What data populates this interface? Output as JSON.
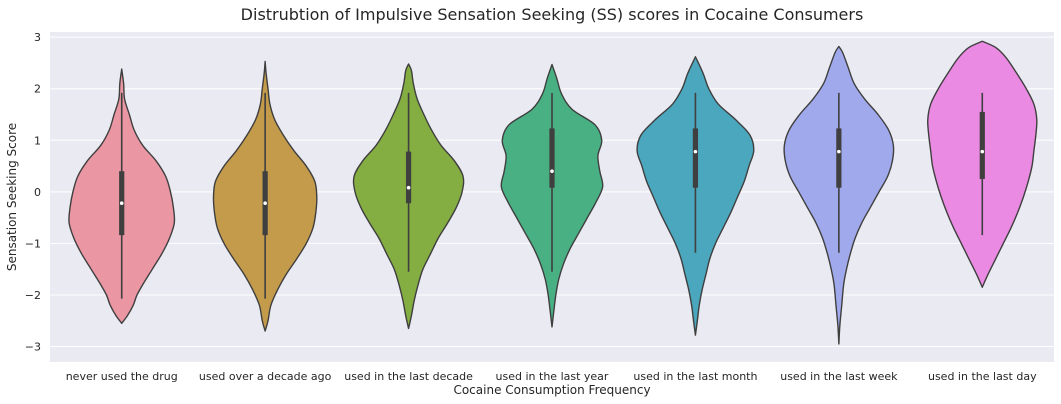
{
  "chart_data": {
    "type": "violin",
    "title": "Distrubtion of Impulsive Sensation Seeking (SS) scores in Cocaine Consumers",
    "xlabel": "Cocaine Consumption Frequency",
    "ylabel": "Sensation Seeking Score",
    "ylim": [
      -3.3,
      3.1
    ],
    "yticks": [
      -3,
      -2,
      -1,
      0,
      1,
      2,
      3
    ],
    "grid": true,
    "legend": "none",
    "categories": [
      "never used the drug",
      "used over a decade ago",
      "used in the last decade",
      "used in the last year",
      "used in the last month",
      "used in the last week",
      "used in the last day"
    ],
    "series": [
      {
        "color": "#ea96a3",
        "whisker": [
          -2.07,
          1.92
        ],
        "q1": -0.84,
        "median": -0.22,
        "q3": 0.4,
        "profile": [
          [
            -2.55,
            0
          ],
          [
            -2.4,
            0.06
          ],
          [
            -2.2,
            0.12
          ],
          [
            -2.0,
            0.16
          ],
          [
            -1.8,
            0.22
          ],
          [
            -1.5,
            0.32
          ],
          [
            -1.2,
            0.42
          ],
          [
            -0.9,
            0.5
          ],
          [
            -0.6,
            0.55
          ],
          [
            -0.3,
            0.54
          ],
          [
            0.0,
            0.51
          ],
          [
            0.3,
            0.46
          ],
          [
            0.6,
            0.36
          ],
          [
            0.9,
            0.22
          ],
          [
            1.2,
            0.13
          ],
          [
            1.5,
            0.08
          ],
          [
            1.8,
            0.03
          ],
          [
            2.1,
            0.02
          ],
          [
            2.38,
            0
          ]
        ]
      },
      {
        "color": "#c49b4b",
        "whisker": [
          -2.07,
          1.92
        ],
        "q1": -0.84,
        "median": -0.22,
        "q3": 0.4,
        "profile": [
          [
            -2.7,
            0
          ],
          [
            -2.5,
            0.03
          ],
          [
            -2.2,
            0.06
          ],
          [
            -1.9,
            0.13
          ],
          [
            -1.6,
            0.22
          ],
          [
            -1.3,
            0.33
          ],
          [
            -1.0,
            0.43
          ],
          [
            -0.7,
            0.5
          ],
          [
            -0.4,
            0.53
          ],
          [
            -0.1,
            0.54
          ],
          [
            0.2,
            0.52
          ],
          [
            0.5,
            0.43
          ],
          [
            0.8,
            0.3
          ],
          [
            1.1,
            0.19
          ],
          [
            1.4,
            0.1
          ],
          [
            1.7,
            0.05
          ],
          [
            2.0,
            0.03
          ],
          [
            2.3,
            0.01
          ],
          [
            2.53,
            0
          ]
        ]
      },
      {
        "color": "#84ad42",
        "whisker": [
          -1.55,
          1.92
        ],
        "q1": -0.22,
        "median": 0.08,
        "q3": 0.78,
        "profile": [
          [
            -2.65,
            0
          ],
          [
            -2.4,
            0.03
          ],
          [
            -2.1,
            0.06
          ],
          [
            -1.8,
            0.1
          ],
          [
            -1.5,
            0.15
          ],
          [
            -1.2,
            0.23
          ],
          [
            -0.9,
            0.31
          ],
          [
            -0.6,
            0.41
          ],
          [
            -0.3,
            0.5
          ],
          [
            0.0,
            0.56
          ],
          [
            0.3,
            0.57
          ],
          [
            0.6,
            0.48
          ],
          [
            0.9,
            0.34
          ],
          [
            1.2,
            0.24
          ],
          [
            1.5,
            0.16
          ],
          [
            1.8,
            0.09
          ],
          [
            2.1,
            0.05
          ],
          [
            2.35,
            0.03
          ],
          [
            2.48,
            0
          ]
        ]
      },
      {
        "color": "#48b083",
        "whisker": [
          -1.55,
          1.92
        ],
        "q1": 0.08,
        "median": 0.4,
        "q3": 1.23,
        "profile": [
          [
            -2.62,
            0
          ],
          [
            -2.3,
            0.02
          ],
          [
            -2.0,
            0.04
          ],
          [
            -1.7,
            0.07
          ],
          [
            -1.4,
            0.12
          ],
          [
            -1.1,
            0.19
          ],
          [
            -0.8,
            0.28
          ],
          [
            -0.5,
            0.37
          ],
          [
            -0.2,
            0.46
          ],
          [
            0.1,
            0.53
          ],
          [
            0.4,
            0.5
          ],
          [
            0.7,
            0.48
          ],
          [
            1.0,
            0.52
          ],
          [
            1.3,
            0.45
          ],
          [
            1.6,
            0.21
          ],
          [
            1.9,
            0.1
          ],
          [
            2.2,
            0.05
          ],
          [
            2.47,
            0
          ]
        ]
      },
      {
        "color": "#4aa7bd",
        "whisker": [
          -1.18,
          1.92
        ],
        "q1": 0.08,
        "median": 0.78,
        "q3": 1.23,
        "profile": [
          [
            -2.78,
            0
          ],
          [
            -2.5,
            0.02
          ],
          [
            -2.2,
            0.04
          ],
          [
            -1.9,
            0.07
          ],
          [
            -1.6,
            0.11
          ],
          [
            -1.3,
            0.15
          ],
          [
            -1.0,
            0.21
          ],
          [
            -0.7,
            0.29
          ],
          [
            -0.4,
            0.37
          ],
          [
            -0.1,
            0.44
          ],
          [
            0.2,
            0.51
          ],
          [
            0.5,
            0.56
          ],
          [
            0.8,
            0.61
          ],
          [
            1.1,
            0.57
          ],
          [
            1.4,
            0.42
          ],
          [
            1.7,
            0.24
          ],
          [
            2.0,
            0.14
          ],
          [
            2.3,
            0.08
          ],
          [
            2.62,
            0
          ]
        ]
      },
      {
        "color": "#9fa9ec",
        "whisker": [
          -1.18,
          1.92
        ],
        "q1": 0.08,
        "median": 0.78,
        "q3": 1.23,
        "profile": [
          [
            -2.95,
            0
          ],
          [
            -2.6,
            0.01
          ],
          [
            -2.2,
            0.03
          ],
          [
            -1.8,
            0.05
          ],
          [
            -1.5,
            0.08
          ],
          [
            -1.2,
            0.12
          ],
          [
            -0.9,
            0.17
          ],
          [
            -0.6,
            0.24
          ],
          [
            -0.3,
            0.33
          ],
          [
            0.0,
            0.42
          ],
          [
            0.3,
            0.51
          ],
          [
            0.6,
            0.56
          ],
          [
            0.9,
            0.57
          ],
          [
            1.2,
            0.52
          ],
          [
            1.5,
            0.41
          ],
          [
            1.8,
            0.27
          ],
          [
            2.1,
            0.16
          ],
          [
            2.4,
            0.1
          ],
          [
            2.7,
            0.04
          ],
          [
            2.82,
            0
          ]
        ]
      },
      {
        "color": "#ea8ae2",
        "whisker": [
          -0.84,
          1.92
        ],
        "q1": 0.25,
        "median": 0.78,
        "q3": 1.55,
        "profile": [
          [
            -1.85,
            0
          ],
          [
            -1.6,
            0.06
          ],
          [
            -1.3,
            0.14
          ],
          [
            -1.0,
            0.22
          ],
          [
            -0.7,
            0.3
          ],
          [
            -0.4,
            0.37
          ],
          [
            -0.1,
            0.43
          ],
          [
            0.2,
            0.48
          ],
          [
            0.5,
            0.52
          ],
          [
            0.8,
            0.54
          ],
          [
            1.1,
            0.56
          ],
          [
            1.4,
            0.57
          ],
          [
            1.7,
            0.54
          ],
          [
            2.0,
            0.46
          ],
          [
            2.3,
            0.36
          ],
          [
            2.6,
            0.25
          ],
          [
            2.8,
            0.14
          ],
          [
            2.92,
            0
          ]
        ]
      }
    ]
  }
}
